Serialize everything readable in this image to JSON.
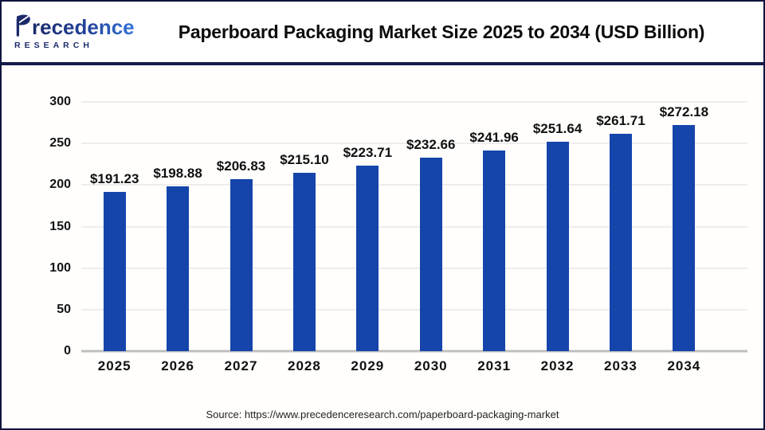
{
  "header": {
    "logo": {
      "word": "Precedence",
      "word_rest": "recedence",
      "subtitle": "RESEARCH"
    },
    "title": "Paperboard Packaging Market Size 2025 to 2034 (USD Billion)"
  },
  "chart_data": {
    "type": "bar",
    "title": "Paperboard Packaging Market Size 2025 to 2034 (USD Billion)",
    "unit": "USD Billion",
    "categories": [
      "2025",
      "2026",
      "2027",
      "2028",
      "2029",
      "2030",
      "2031",
      "2032",
      "2033",
      "2034"
    ],
    "values": [
      191.23,
      198.88,
      206.83,
      215.1,
      223.71,
      232.66,
      241.96,
      251.64,
      261.71,
      272.18
    ],
    "value_labels": [
      "$191.23",
      "$198.88",
      "$206.83",
      "$215.10",
      "$223.71",
      "$232.66",
      "$241.96",
      "$251.64",
      "$261.71",
      "$272.18"
    ],
    "ylim": [
      0,
      300
    ],
    "yticks": [
      0,
      50,
      100,
      150,
      200,
      250,
      300
    ],
    "grid": true,
    "legend": "none",
    "bar_color": "#1545ab",
    "gridline_color": "#eeecec",
    "axis_line_color": "#bfbfbf",
    "label_color": "#101010"
  },
  "footer": {
    "source": "Source: https://www.precedenceresearch.com/paperboard-packaging-market"
  },
  "colors": {
    "logo_navy": "#1b2a6b",
    "logo_blue": "#3274d9",
    "border_navy": "#10143c",
    "divider_navy": "#151b4d"
  }
}
